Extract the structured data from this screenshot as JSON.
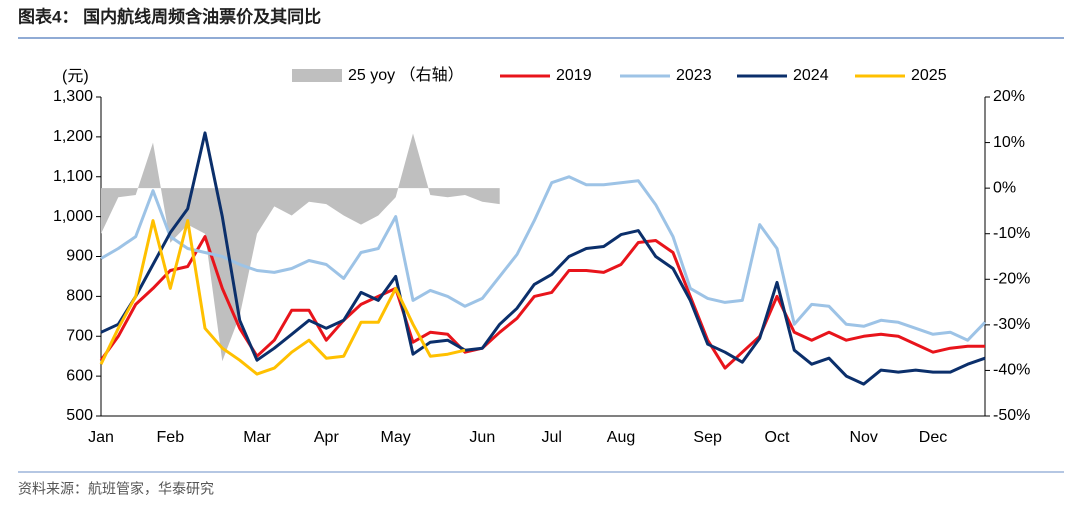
{
  "title": "图表4：  国内航线周频含油票价及其同比",
  "source": "资料来源：航班管家，华泰研究",
  "chart_data": {
    "type": "line",
    "ylabel": "(元)",
    "categories": [
      "Jan",
      null,
      null,
      null,
      "Feb",
      null,
      null,
      null,
      null,
      "Mar",
      null,
      null,
      null,
      "Apr",
      null,
      null,
      null,
      "May",
      null,
      null,
      null,
      null,
      "Jun",
      null,
      null,
      null,
      "Jul",
      null,
      null,
      null,
      "Aug",
      null,
      null,
      null,
      null,
      "Sep",
      null,
      null,
      null,
      "Oct",
      null,
      null,
      null,
      null,
      "Nov",
      null,
      null,
      null,
      "Dec",
      null,
      null,
      null
    ],
    "series": [
      {
        "name": "25 yoy （右轴）",
        "color": "#bfbfbf",
        "kind": "area",
        "axis": "y2",
        "values": [
          -10,
          -2,
          -1.5,
          10,
          -12,
          -8,
          -10,
          -38,
          -28,
          -10,
          -4,
          -6,
          -3,
          -3.5,
          -6,
          -8,
          -6,
          -2,
          12,
          -1.5,
          -2,
          -1.5,
          -3,
          -3.5,
          null,
          null,
          null,
          null,
          null,
          null,
          null,
          null,
          null,
          null,
          null,
          null,
          null,
          null,
          null,
          null,
          null,
          null,
          null,
          null,
          null,
          null,
          null,
          null,
          null,
          null,
          null,
          null
        ]
      },
      {
        "name": "2019",
        "color": "#e8141b",
        "values": [
          640,
          700,
          780,
          820,
          865,
          875,
          950,
          820,
          720,
          650,
          690,
          765,
          765,
          690,
          740,
          780,
          800,
          820,
          685,
          710,
          705,
          660,
          670,
          710,
          745,
          800,
          810,
          865,
          865,
          860,
          880,
          935,
          940,
          910,
          800,
          690,
          620,
          660,
          700,
          800,
          710,
          690,
          710,
          690,
          700,
          705,
          700,
          680,
          660,
          670,
          675,
          675
        ]
      },
      {
        "name": "2023",
        "color": "#9dc3e6",
        "values": [
          895,
          920,
          950,
          1065,
          950,
          920,
          910,
          900,
          880,
          865,
          860,
          870,
          890,
          880,
          845,
          910,
          920,
          1000,
          790,
          815,
          800,
          775,
          795,
          850,
          905,
          990,
          1085,
          1100,
          1080,
          1080,
          1085,
          1090,
          1030,
          950,
          820,
          795,
          785,
          790,
          980,
          920,
          730,
          780,
          775,
          730,
          725,
          740,
          735,
          720,
          705,
          710,
          690,
          735
        ]
      },
      {
        "name": "2024",
        "color": "#0b2f6b",
        "values": [
          710,
          730,
          800,
          880,
          960,
          1020,
          1210,
          1000,
          740,
          640,
          670,
          705,
          740,
          720,
          740,
          810,
          790,
          850,
          655,
          685,
          690,
          665,
          670,
          730,
          770,
          830,
          855,
          900,
          920,
          925,
          955,
          965,
          900,
          870,
          790,
          680,
          660,
          635,
          695,
          835,
          665,
          630,
          645,
          600,
          580,
          615,
          610,
          615,
          610,
          610,
          630,
          645
        ]
      },
      {
        "name": "2025",
        "color": "#ffc000",
        "values": [
          630,
          720,
          800,
          990,
          820,
          990,
          720,
          670,
          640,
          605,
          620,
          660,
          690,
          645,
          650,
          735,
          735,
          820,
          730,
          650,
          655,
          665,
          null,
          null,
          null,
          null,
          null,
          null,
          null,
          null,
          null,
          null,
          null,
          null,
          null,
          null,
          null,
          null,
          null,
          null,
          null,
          null,
          null,
          null,
          null,
          null,
          null,
          null,
          null,
          null,
          null,
          null
        ]
      }
    ],
    "ylim": [
      500,
      1300
    ],
    "yticks": [
      500,
      600,
      700,
      800,
      900,
      {
        "value": 1000,
        "label": "1,000"
      },
      {
        "value": 1100,
        "label": "1,100"
      },
      {
        "value": 1200,
        "label": "1,200"
      },
      {
        "value": 1300,
        "label": "1,300"
      }
    ],
    "y2lim": [
      -50,
      20
    ],
    "y2ticks": [
      {
        "value": -50,
        "label": "-50%"
      },
      {
        "value": -40,
        "label": "-40%"
      },
      {
        "value": -30,
        "label": "-30%"
      },
      {
        "value": -20,
        "label": "-20%"
      },
      {
        "value": -10,
        "label": "-10%"
      },
      {
        "value": 0,
        "label": "0%"
      },
      {
        "value": 10,
        "label": "10%"
      },
      {
        "value": 20,
        "label": "20%"
      }
    ],
    "legend": "top"
  }
}
